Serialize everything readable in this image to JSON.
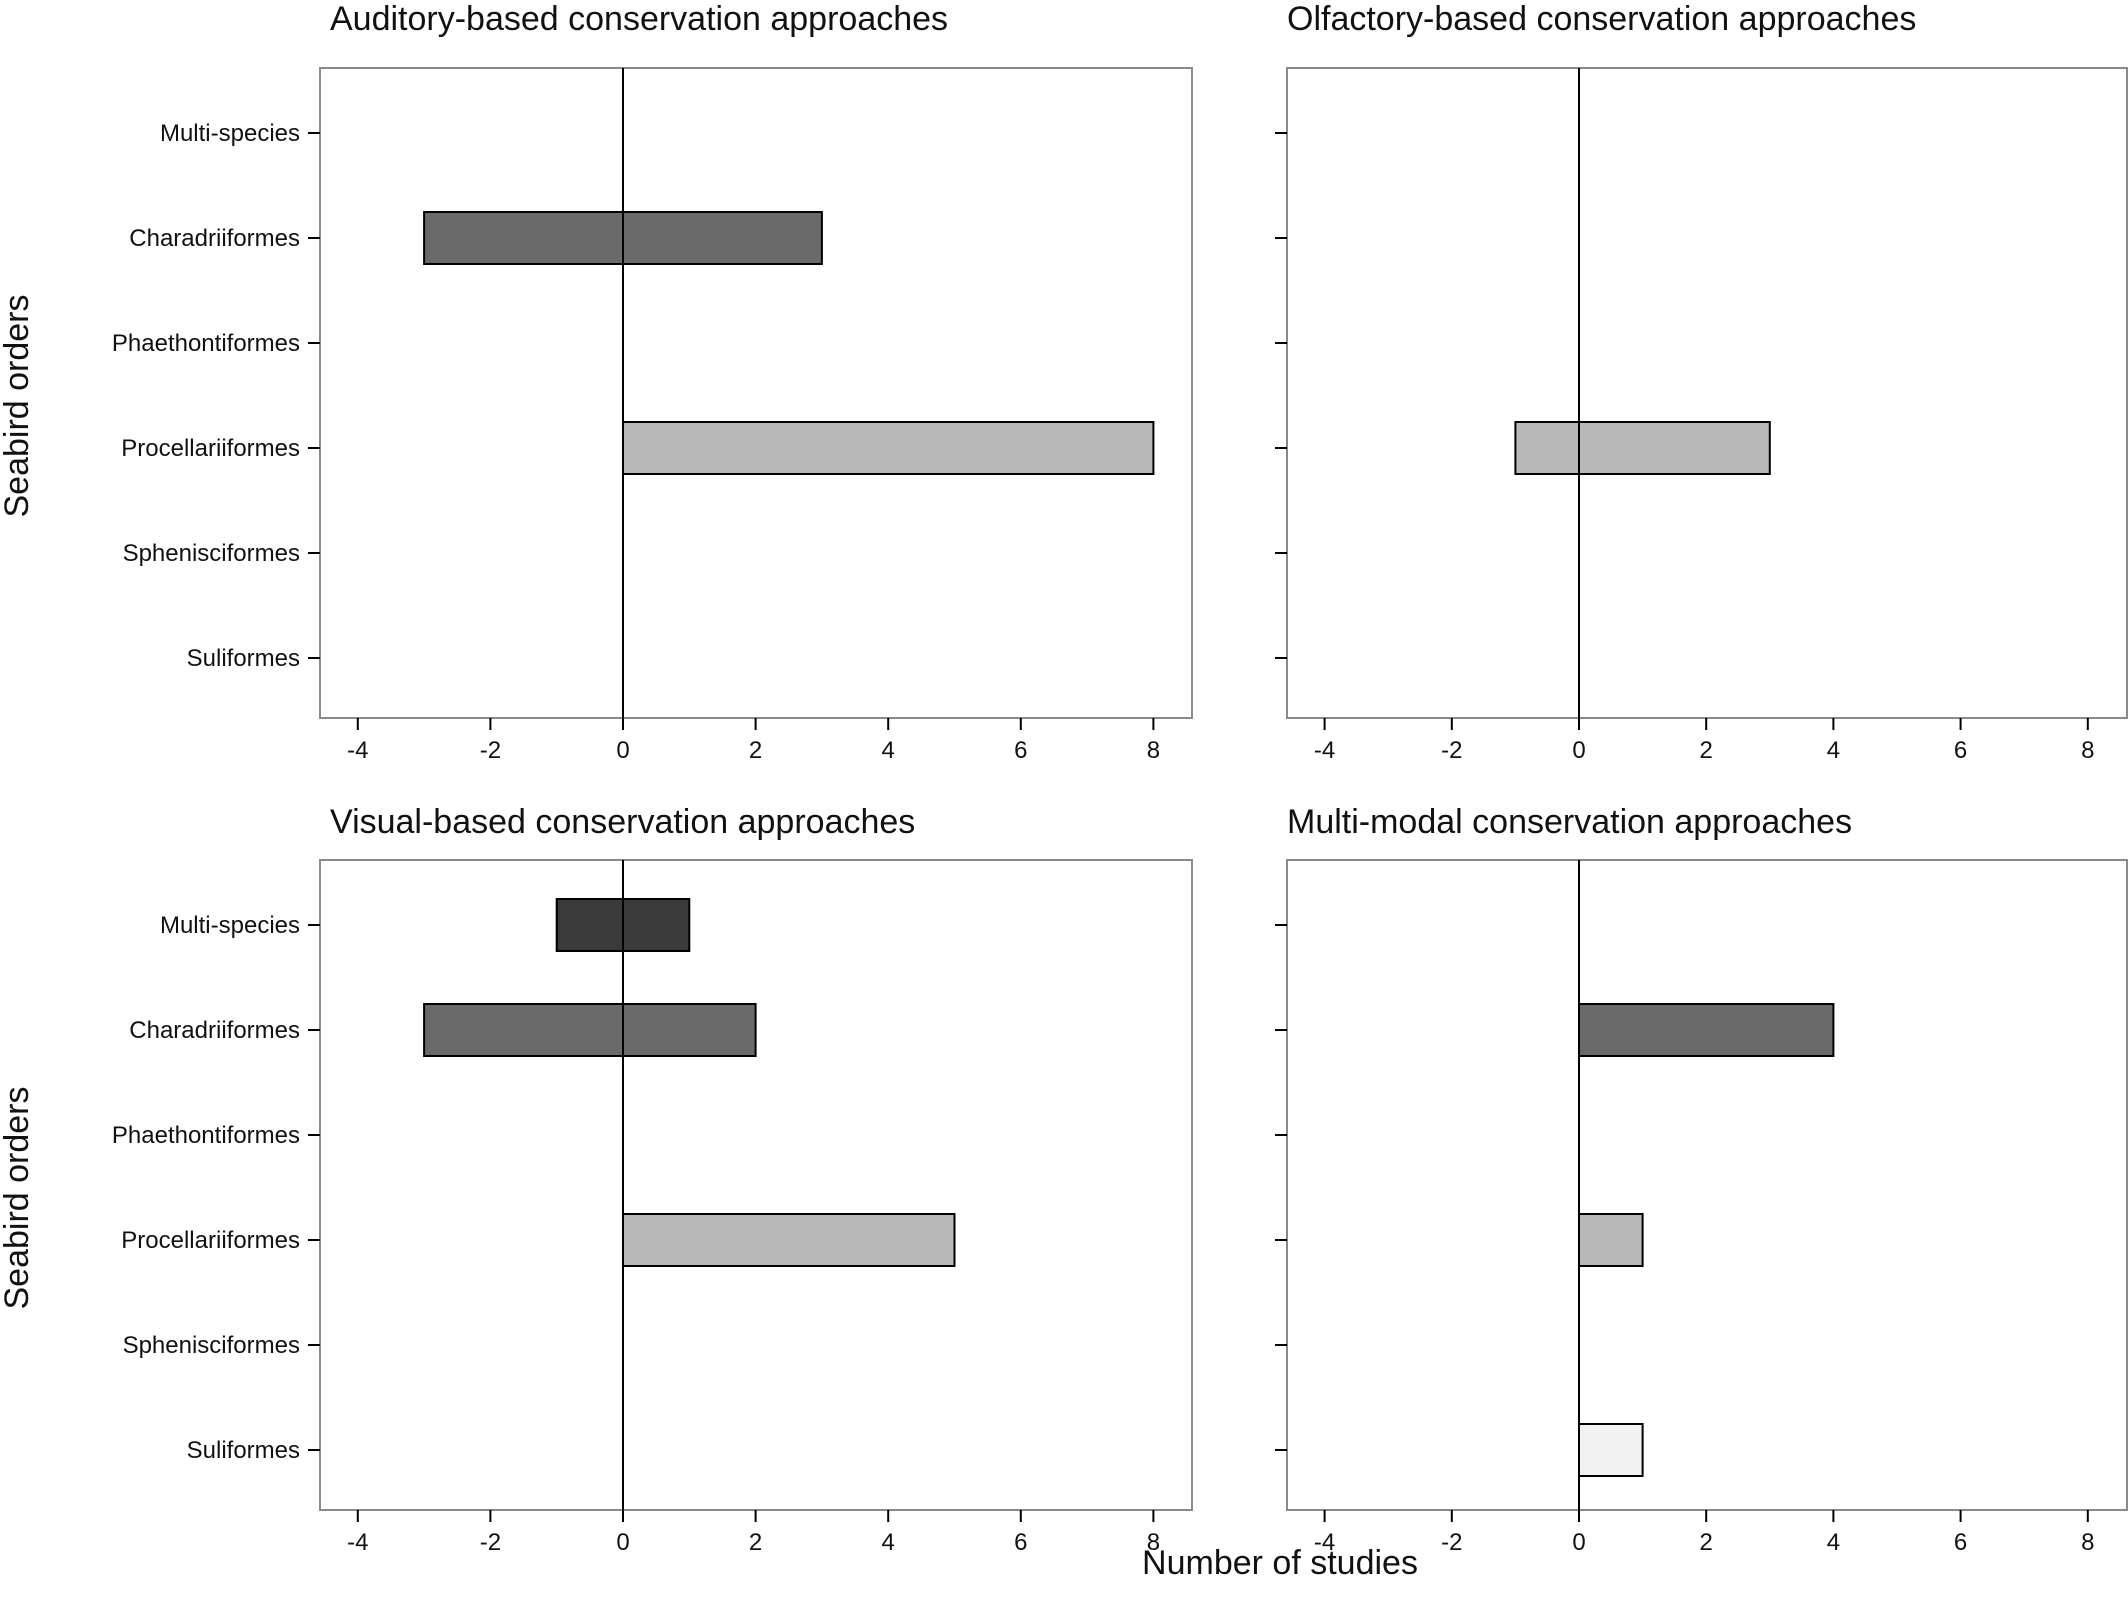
{
  "figure": {
    "y_axis_label": "Seabird orders",
    "x_axis_label": "Number of studies"
  },
  "chart_data": [
    {
      "type": "bar",
      "orientation": "horizontal",
      "title": "Auditory-based conservation approaches",
      "ylabel": "Seabird orders",
      "xlabel": "",
      "categories": [
        "Multi-species",
        "Charadriiformes",
        "Phaethontiformes",
        "Procellariiformes",
        "Sphenisciformes",
        "Suliformes"
      ],
      "bars": [
        {
          "category": "Charadriiformes",
          "from": -3,
          "to": 3
        },
        {
          "category": "Procellariiformes",
          "from": 0,
          "to": 8
        }
      ],
      "xticks": [
        -4,
        -2,
        0,
        2,
        4,
        6,
        8
      ],
      "xlim": [
        -4.8,
        8.8
      ],
      "show_category_labels": true
    },
    {
      "type": "bar",
      "orientation": "horizontal",
      "title": "Olfactory-based conservation approaches",
      "ylabel": "",
      "xlabel": "",
      "categories": [
        "Multi-species",
        "Charadriiformes",
        "Phaethontiformes",
        "Procellariiformes",
        "Sphenisciformes",
        "Suliformes"
      ],
      "bars": [
        {
          "category": "Procellariiformes",
          "from": -1,
          "to": 3
        }
      ],
      "xticks": [
        -4,
        -2,
        0,
        2,
        4,
        6,
        8
      ],
      "xlim": [
        -4.8,
        8.5
      ],
      "show_category_labels": false
    },
    {
      "type": "bar",
      "orientation": "horizontal",
      "title": "Visual-based conservation approaches",
      "ylabel": "Seabird orders",
      "xlabel": "",
      "categories": [
        "Multi-species",
        "Charadriiformes",
        "Phaethontiformes",
        "Procellariiformes",
        "Sphenisciformes",
        "Suliformes"
      ],
      "bars": [
        {
          "category": "Multi-species",
          "from": -1,
          "to": 1
        },
        {
          "category": "Charadriiformes",
          "from": -3,
          "to": 2
        },
        {
          "category": "Procellariiformes",
          "from": 0,
          "to": 5
        }
      ],
      "xticks": [
        -4,
        -2,
        0,
        2,
        4,
        6,
        8
      ],
      "xlim": [
        -4.8,
        8.8
      ],
      "show_category_labels": true
    },
    {
      "type": "bar",
      "orientation": "horizontal",
      "title": "Multi-modal conservation approaches",
      "ylabel": "",
      "xlabel": "Number of studies",
      "categories": [
        "Multi-species",
        "Charadriiformes",
        "Phaethontiformes",
        "Procellariiformes",
        "Sphenisciformes",
        "Suliformes"
      ],
      "bars": [
        {
          "category": "Charadriiformes",
          "from": 0,
          "to": 4
        },
        {
          "category": "Procellariiformes",
          "from": 0,
          "to": 1
        },
        {
          "category": "Suliformes",
          "from": 0,
          "to": 1
        }
      ],
      "xticks": [
        -4,
        -2,
        0,
        2,
        4,
        6,
        8
      ],
      "xlim": [
        -4.8,
        8.5
      ],
      "show_category_labels": false
    }
  ],
  "colors": {
    "Multi-species": "#3a3a3a",
    "Charadriiformes": "#6a6a6a",
    "Phaethontiformes": "#8f8f8f",
    "Procellariiformes": "#b8b8b8",
    "Sphenisciformes": "#d6d6d6",
    "Suliformes": "#f2f2f2",
    "frame": "#8a8a8a",
    "axis_line": "#000000",
    "bar_outline": "#000000"
  }
}
